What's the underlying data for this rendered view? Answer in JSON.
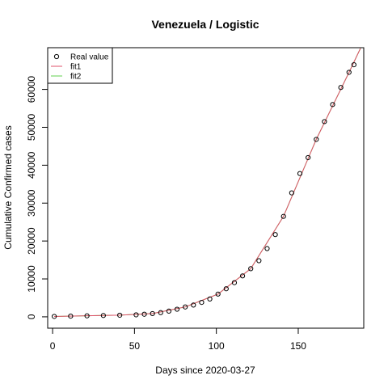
{
  "chart_data": {
    "type": "scatter",
    "title": "Venezuela / Logistic",
    "xlabel": "Days since 2020-03-27",
    "ylabel": "Cumulative Confirmed cases",
    "xlim": [
      -3,
      190
    ],
    "ylim": [
      -3000,
      71000
    ],
    "x_ticks": [
      0,
      50,
      100,
      150
    ],
    "x_tick_labels": [
      "0",
      "50",
      "100",
      "150"
    ],
    "y_ticks": [
      0,
      10000,
      20000,
      30000,
      40000,
      50000,
      60000
    ],
    "y_tick_labels": [
      "0",
      "10000",
      "20000",
      "30000",
      "40000",
      "50000",
      "60000"
    ],
    "grid": false,
    "legend": {
      "position": "top-left",
      "entries": [
        {
          "label": "Real value",
          "type": "point",
          "color": "#000000"
        },
        {
          "label": "fit1",
          "type": "line",
          "color": "#df536b"
        },
        {
          "label": "fit2",
          "type": "line",
          "color": "#61d04f"
        }
      ]
    },
    "series": [
      {
        "name": "Real value",
        "type": "points",
        "color": "#000000",
        "x": [
          1,
          11,
          21,
          31,
          41,
          51,
          56,
          61,
          66,
          71,
          76,
          81,
          86,
          91,
          96,
          101,
          106,
          111,
          116,
          121,
          126,
          131,
          136,
          141,
          146,
          151,
          156,
          161,
          166,
          171,
          176,
          181,
          184
        ],
        "y": [
          100,
          180,
          260,
          350,
          420,
          520,
          680,
          850,
          1100,
          1500,
          2000,
          2600,
          3100,
          3800,
          4700,
          6000,
          7400,
          9000,
          10800,
          12700,
          14800,
          18000,
          21700,
          26500,
          32700,
          37800,
          42000,
          46800,
          51500,
          56000,
          60500,
          64500,
          66500
        ]
      },
      {
        "name": "fit1",
        "type": "line",
        "color": "#df536b",
        "x": [
          1,
          21,
          41,
          61,
          81,
          101,
          121,
          141,
          161,
          181,
          188
        ],
        "y": [
          100,
          280,
          440,
          860,
          2600,
          6000,
          12700,
          26500,
          46800,
          64500,
          70800
        ]
      },
      {
        "name": "fit2",
        "type": "line",
        "color": "#61d04f",
        "x": [
          1,
          21,
          41,
          61,
          81,
          101,
          121,
          141,
          161,
          181,
          188
        ],
        "y": [
          100,
          280,
          440,
          860,
          2600,
          6000,
          12700,
          26500,
          46800,
          64500,
          70800
        ]
      }
    ]
  }
}
